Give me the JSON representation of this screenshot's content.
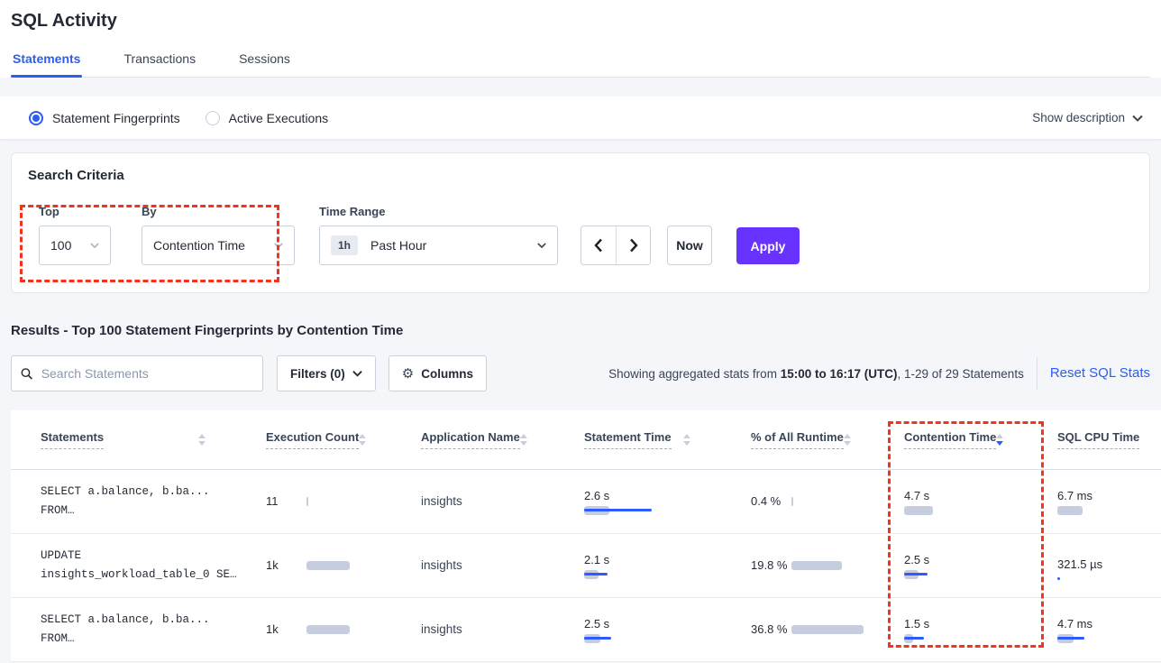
{
  "page": {
    "title": "SQL Activity"
  },
  "tabs": [
    {
      "label": "Statements",
      "active": true
    },
    {
      "label": "Transactions",
      "active": false
    },
    {
      "label": "Sessions",
      "active": false
    }
  ],
  "mode_strip": {
    "options": [
      {
        "label": "Statement Fingerprints",
        "selected": true
      },
      {
        "label": "Active Executions",
        "selected": false
      }
    ],
    "show_description_label": "Show description"
  },
  "search_criteria": {
    "title": "Search Criteria",
    "top": {
      "label": "Top",
      "value": "100"
    },
    "by": {
      "label": "By",
      "value": "Contention Time"
    },
    "time_range": {
      "label": "Time Range",
      "badge": "1h",
      "value": "Past Hour"
    },
    "now_label": "Now",
    "apply_label": "Apply"
  },
  "results": {
    "heading": "Results - Top 100 Statement Fingerprints by Contention Time",
    "search_placeholder": "Search Statements",
    "filters_label": "Filters (0)",
    "columns_label": "Columns",
    "showing_prefix": "Showing aggregated stats from ",
    "showing_bold": "15:00 to 16:17 (UTC)",
    "showing_suffix": ", 1-29 of 29 Statements",
    "reset_label": "Reset SQL Stats"
  },
  "table": {
    "columns": [
      "Statements",
      "Execution Count",
      "Application Name",
      "Statement Time",
      "% of All Runtime",
      "Contention Time",
      "SQL CPU Time"
    ],
    "sorted_column": "Contention Time",
    "sort_direction": "desc",
    "rows": [
      {
        "statement": {
          "line1": "SELECT a.balance, b.ba...",
          "line2": "FROM…"
        },
        "execution_count": {
          "value": "11",
          "bar": 2,
          "line": 0
        },
        "application_name": "insights",
        "statement_time": {
          "value": "2.6 s",
          "bar": 28,
          "line": 75
        },
        "pct_runtime": {
          "value": "0.4 %",
          "bar": 2,
          "line": 0
        },
        "contention_time": {
          "value": "4.7 s",
          "bar": 32,
          "line": 0
        },
        "sql_cpu_time": {
          "value": "6.7 ms",
          "bar": 28,
          "line": 0
        }
      },
      {
        "statement": {
          "line1": "UPDATE",
          "line2": "insights_workload_table_0 SE…"
        },
        "execution_count": {
          "value": "1k",
          "bar": 48,
          "line": 0
        },
        "application_name": "insights",
        "statement_time": {
          "value": "2.1 s",
          "bar": 16,
          "line": 26
        },
        "pct_runtime": {
          "value": "19.8 %",
          "bar": 56,
          "line": 0
        },
        "contention_time": {
          "value": "2.5 s",
          "bar": 16,
          "line": 26
        },
        "sql_cpu_time": {
          "value": "321.5 µs",
          "bar": 0,
          "line": 3
        }
      },
      {
        "statement": {
          "line1": "SELECT a.balance, b.ba...",
          "line2": "FROM…"
        },
        "execution_count": {
          "value": "1k",
          "bar": 48,
          "line": 0
        },
        "application_name": "insights",
        "statement_time": {
          "value": "2.5 s",
          "bar": 18,
          "line": 30
        },
        "pct_runtime": {
          "value": "36.8 %",
          "bar": 80,
          "line": 0
        },
        "contention_time": {
          "value": "1.5 s",
          "bar": 10,
          "line": 22
        },
        "sql_cpu_time": {
          "value": "4.7 ms",
          "bar": 18,
          "line": 30
        }
      }
    ]
  },
  "colors": {
    "accent": "#2b5df0",
    "apply": "#6933ff",
    "red": "#f5331d",
    "bar-gray": "#c6cddf",
    "bar-blue": "#2e5bff"
  }
}
